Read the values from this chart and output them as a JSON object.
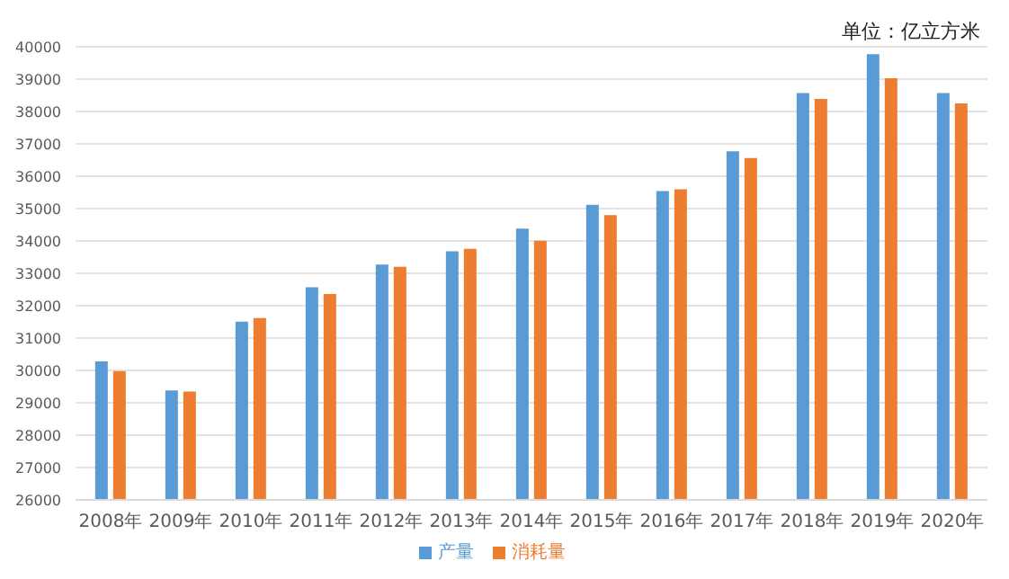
{
  "chart_data": {
    "type": "bar",
    "annotations": [
      "单位：亿立方米"
    ],
    "categories": [
      "2008年",
      "2009年",
      "2010年",
      "2011年",
      "2012年",
      "2013年",
      "2014年",
      "2015年",
      "2016年",
      "2017年",
      "2018年",
      "2019年",
      "2020年"
    ],
    "series": [
      {
        "name": "产量",
        "color": "#5b9bd5",
        "values": [
          30280,
          29380,
          31510,
          32570,
          33270,
          33680,
          34380,
          35120,
          35540,
          36770,
          38570,
          39770,
          38570
        ]
      },
      {
        "name": "消耗量",
        "color": "#ed7d31",
        "values": [
          29980,
          29350,
          31620,
          32360,
          33200,
          33760,
          34010,
          34800,
          35600,
          36560,
          38390,
          39030,
          38250
        ]
      }
    ],
    "ylim": [
      26000,
      40000
    ],
    "yticks": [
      26000,
      27000,
      28000,
      29000,
      30000,
      31000,
      32000,
      33000,
      34000,
      35000,
      36000,
      37000,
      38000,
      39000,
      40000
    ],
    "grid": "y",
    "legend": "bottom"
  }
}
